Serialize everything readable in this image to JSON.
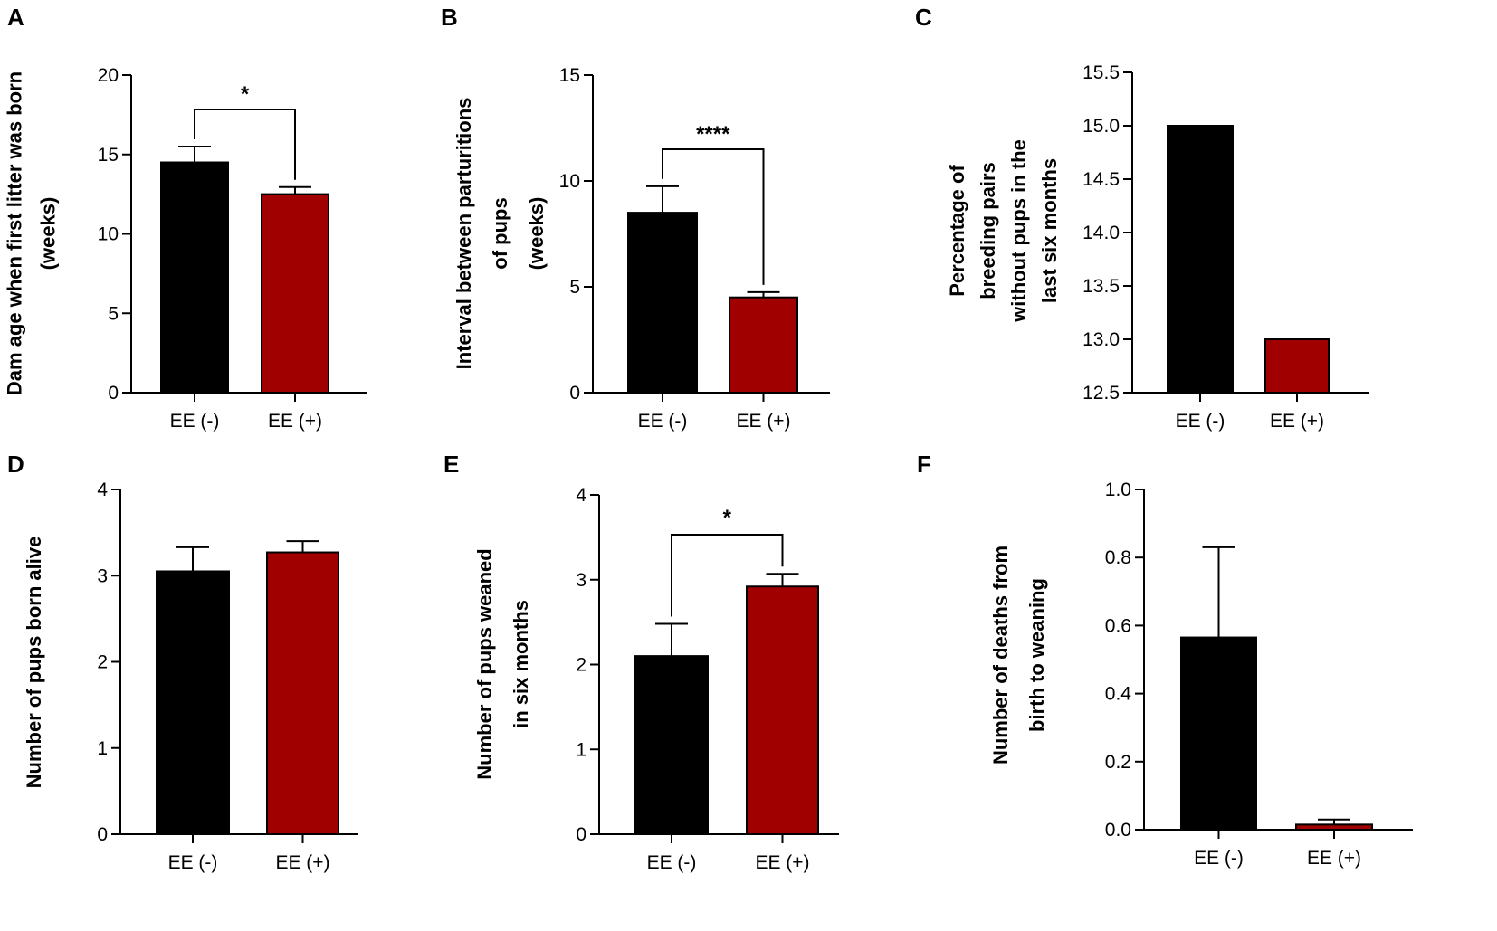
{
  "colors": {
    "ee_minus": "#000000",
    "ee_plus": "#a00000",
    "bar_outline": "#000000"
  },
  "chart_data": [
    {
      "panel": "A",
      "type": "bar",
      "title": "",
      "ylabel_lines": [
        "Dam age when first litter was born",
        "(weeks)"
      ],
      "categories": [
        "EE (-)",
        "EE (+)"
      ],
      "values": [
        14.5,
        12.5
      ],
      "errors": [
        1.0,
        0.45
      ],
      "ylim": [
        0,
        20
      ],
      "yticks": [
        0,
        5,
        10,
        15,
        20
      ],
      "ytick_labels": [
        "0",
        "5",
        "10",
        "15",
        "20"
      ],
      "significance": "*",
      "grid": false
    },
    {
      "panel": "B",
      "type": "bar",
      "title": "",
      "ylabel_lines": [
        "Interval between parturitions",
        "of pups",
        "(weeks)"
      ],
      "categories": [
        "EE (-)",
        "EE (+)"
      ],
      "values": [
        8.5,
        4.5
      ],
      "errors": [
        1.25,
        0.25
      ],
      "ylim": [
        0,
        15
      ],
      "yticks": [
        0,
        5,
        10,
        15
      ],
      "ytick_labels": [
        "0",
        "5",
        "10",
        "15"
      ],
      "significance": "****",
      "grid": false
    },
    {
      "panel": "C",
      "type": "bar",
      "title": "",
      "ylabel_lines": [
        "Percentage of",
        "breeding pairs",
        "without pups in the",
        "last six months"
      ],
      "categories": [
        "EE (-)",
        "EE (+)"
      ],
      "values": [
        15.0,
        13.0
      ],
      "errors": [
        null,
        null
      ],
      "ylim": [
        12.5,
        15.5
      ],
      "yticks": [
        12.5,
        13.0,
        13.5,
        14.0,
        14.5,
        15.0,
        15.5
      ],
      "ytick_labels": [
        "12.5",
        "13.0",
        "13.5",
        "14.0",
        "14.5",
        "15.0",
        "15.5"
      ],
      "significance": "",
      "grid": false
    },
    {
      "panel": "D",
      "type": "bar",
      "title": "",
      "ylabel_lines": [
        "Number of pups born alive"
      ],
      "categories": [
        "EE (-)",
        "EE (+)"
      ],
      "values": [
        3.05,
        3.27
      ],
      "errors": [
        0.28,
        0.13
      ],
      "ylim": [
        0,
        4
      ],
      "yticks": [
        0,
        1,
        2,
        3,
        4
      ],
      "ytick_labels": [
        "0",
        "1",
        "2",
        "3",
        "4"
      ],
      "significance": "",
      "grid": false
    },
    {
      "panel": "E",
      "type": "bar",
      "title": "",
      "ylabel_lines": [
        "Number of pups weaned",
        "in six months"
      ],
      "categories": [
        "EE (-)",
        "EE (+)"
      ],
      "values": [
        2.1,
        2.92
      ],
      "errors": [
        0.38,
        0.15
      ],
      "ylim": [
        0,
        4
      ],
      "yticks": [
        0,
        1,
        2,
        3,
        4
      ],
      "ytick_labels": [
        "0",
        "1",
        "2",
        "3",
        "4"
      ],
      "significance": "*",
      "grid": false
    },
    {
      "panel": "F",
      "type": "bar",
      "title": "",
      "ylabel_lines": [
        "Number of deaths from",
        "birth to weaning"
      ],
      "categories": [
        "EE (-)",
        "EE (+)"
      ],
      "values": [
        0.565,
        0.015
      ],
      "errors": [
        0.265,
        0.015
      ],
      "ylim": [
        0,
        1.0
      ],
      "yticks": [
        0,
        0.2,
        0.4,
        0.6,
        0.8,
        1.0
      ],
      "ytick_labels": [
        "0.0",
        "0.2",
        "0.4",
        "0.6",
        "0.8",
        "1.0"
      ],
      "significance": "",
      "grid": false
    }
  ]
}
